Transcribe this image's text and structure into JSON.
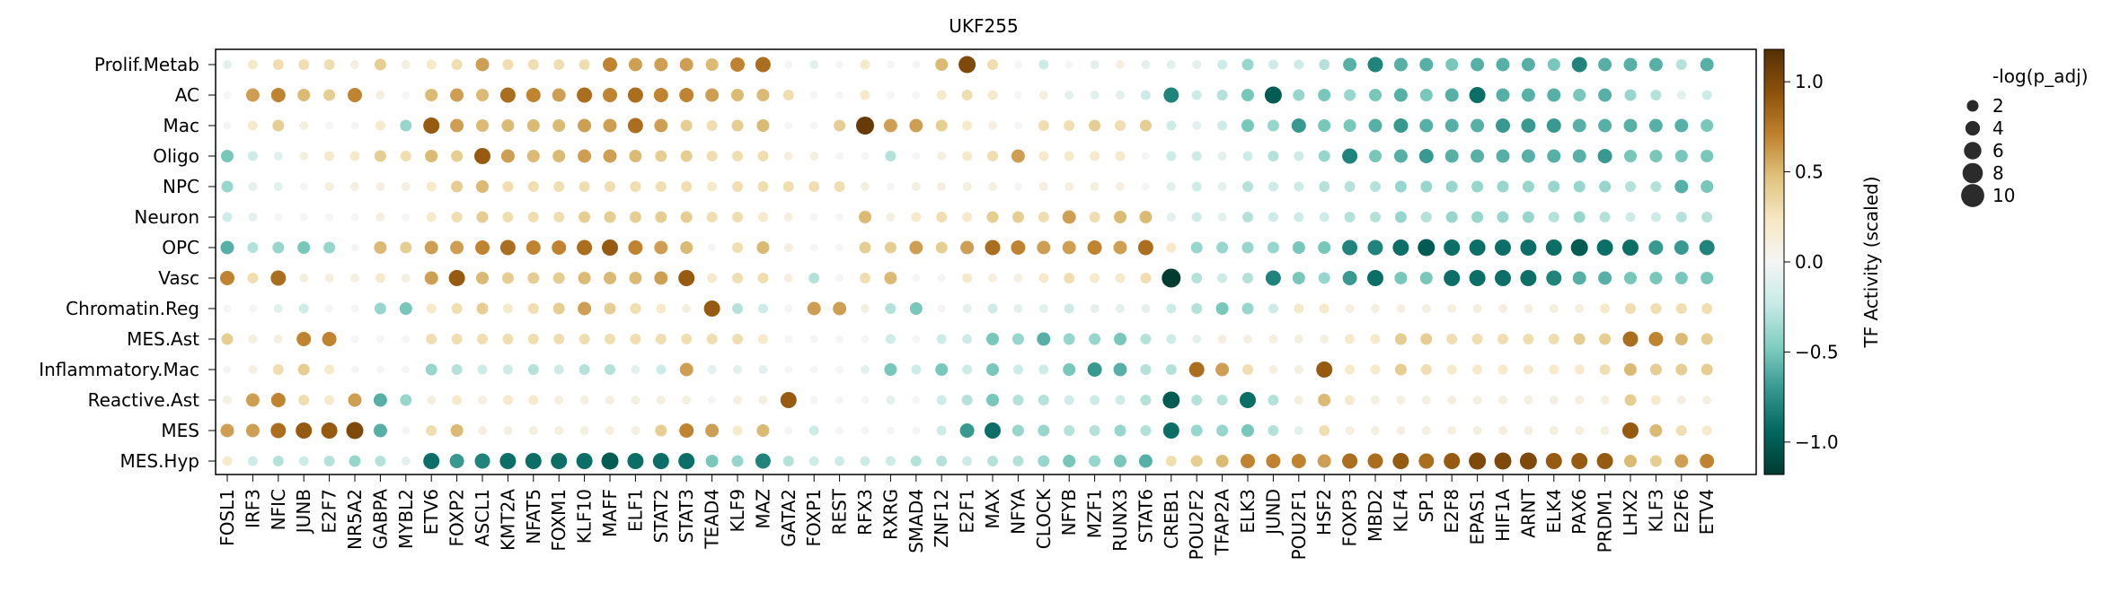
{
  "chart_data": {
    "type": "dotplot",
    "title": "UKF255",
    "rows": [
      "Prolif.Metab",
      "AC",
      "Mac",
      "Oligo",
      "NPC",
      "Neuron",
      "OPC",
      "Vasc",
      "Chromatin.Reg",
      "MES.Ast",
      "Inflammatory.Mac",
      "Reactive.Ast",
      "MES",
      "MES.Hyp"
    ],
    "columns": [
      "FOSL1",
      "IRF3",
      "NFIC",
      "JUNB",
      "E2F7",
      "NR5A2",
      "GABPA",
      "MYBL2",
      "ETV6",
      "FOXP2",
      "ASCL1",
      "KMT2A",
      "NFAT5",
      "FOXM1",
      "KLF10",
      "MAFF",
      "ELF1",
      "STAT2",
      "STAT3",
      "TEAD4",
      "KLF9",
      "MAZ",
      "GATA2",
      "FOXP1",
      "REST",
      "RFX3",
      "RXRG",
      "SMAD4",
      "ZNF12",
      "E2F1",
      "MAX",
      "NFYA",
      "CLOCK",
      "NFYB",
      "MZF1",
      "RUNX3",
      "STAT6",
      "CREB1",
      "POU2F2",
      "TFAP2A",
      "ELK3",
      "JUND",
      "POU2F1",
      "HSF2",
      "FOXP3",
      "MBD2",
      "KLF4",
      "SP1",
      "E2F8",
      "EPAS1",
      "HIF1A",
      "ARNT",
      "ELK4",
      "PAX6",
      "PRDM1",
      "LHX2",
      "KLF3",
      "E2F6",
      "ETV4"
    ],
    "activity": [
      [
        -0.1,
        0.2,
        0.3,
        0.3,
        0.3,
        0.1,
        0.4,
        0.1,
        0.2,
        0.3,
        0.6,
        0.3,
        0.3,
        0.3,
        0.3,
        0.7,
        0.6,
        0.6,
        0.6,
        0.5,
        0.7,
        0.8,
        0.0,
        -0.1,
        0.0,
        0.2,
        0.0,
        0.0,
        0.5,
        1.0,
        0.3,
        0.0,
        -0.2,
        0.0,
        -0.1,
        0.1,
        -0.1,
        -0.1,
        -0.1,
        -0.2,
        -0.4,
        -0.2,
        -0.2,
        -0.3,
        -0.6,
        -0.8,
        -0.6,
        -0.6,
        -0.5,
        -0.6,
        -0.6,
        -0.6,
        -0.5,
        -0.8,
        -0.6,
        -0.6,
        -0.6,
        -0.3,
        -0.6
      ],
      [
        0.0,
        0.6,
        0.7,
        0.5,
        0.4,
        0.7,
        0.1,
        0.0,
        0.5,
        0.6,
        0.5,
        0.8,
        0.7,
        0.6,
        0.8,
        0.7,
        0.8,
        0.7,
        0.7,
        0.6,
        0.5,
        0.5,
        0.3,
        0.0,
        0.0,
        0.2,
        0.0,
        0.0,
        0.2,
        0.3,
        0.2,
        0.0,
        0.1,
        -0.1,
        -0.1,
        -0.1,
        -0.2,
        -0.8,
        -0.2,
        -0.3,
        -0.5,
        -1.0,
        -0.4,
        -0.5,
        -0.4,
        -0.5,
        -0.6,
        -0.5,
        -0.6,
        -0.9,
        -0.6,
        -0.6,
        -0.6,
        -0.5,
        -0.6,
        -0.4,
        -0.3,
        -0.1,
        -0.2
      ],
      [
        0.0,
        0.2,
        0.4,
        0.1,
        0.0,
        0.0,
        0.2,
        -0.4,
        0.9,
        0.6,
        0.5,
        0.5,
        0.5,
        0.5,
        0.6,
        0.6,
        0.8,
        0.6,
        0.4,
        0.3,
        0.4,
        0.5,
        0.0,
        0.0,
        0.4,
        1.1,
        0.6,
        0.6,
        0.4,
        0.2,
        0.1,
        0.0,
        0.3,
        0.3,
        0.4,
        0.3,
        0.4,
        -0.2,
        -0.1,
        -0.2,
        -0.5,
        -0.4,
        -0.7,
        -0.5,
        -0.5,
        -0.6,
        -0.7,
        -0.6,
        -0.6,
        -0.6,
        -0.7,
        -0.7,
        -0.7,
        -0.6,
        -0.6,
        -0.6,
        -0.6,
        -0.6,
        -0.5
      ],
      [
        -0.5,
        -0.2,
        -0.1,
        0.1,
        0.2,
        0.2,
        0.4,
        0.3,
        0.5,
        0.4,
        0.9,
        0.6,
        0.5,
        0.5,
        0.6,
        0.6,
        0.5,
        0.4,
        0.4,
        0.3,
        0.3,
        0.3,
        0.1,
        0.1,
        0.0,
        0.0,
        -0.3,
        0.0,
        0.1,
        0.2,
        0.3,
        0.6,
        0.2,
        0.2,
        0.2,
        0.2,
        0.0,
        -0.2,
        -0.2,
        -0.1,
        -0.2,
        -0.3,
        -0.2,
        -0.4,
        -0.8,
        -0.5,
        -0.6,
        -0.7,
        -0.6,
        -0.6,
        -0.6,
        -0.6,
        -0.6,
        -0.6,
        -0.7,
        -0.5,
        -0.5,
        -0.5,
        -0.5
      ],
      [
        -0.4,
        -0.1,
        -0.1,
        0.0,
        0.1,
        0.1,
        0.1,
        0.1,
        0.2,
        0.4,
        0.5,
        0.3,
        0.3,
        0.3,
        0.3,
        0.3,
        0.3,
        0.3,
        0.3,
        0.2,
        0.3,
        0.3,
        0.3,
        0.3,
        0.3,
        0.1,
        0.0,
        0.1,
        0.1,
        0.1,
        0.1,
        0.0,
        0.1,
        0.1,
        0.1,
        0.1,
        0.0,
        -0.1,
        -0.2,
        -0.1,
        -0.3,
        -0.2,
        -0.2,
        -0.3,
        -0.3,
        -0.3,
        -0.4,
        -0.4,
        -0.4,
        -0.4,
        -0.4,
        -0.4,
        -0.4,
        -0.4,
        -0.4,
        -0.3,
        -0.3,
        -0.6,
        -0.5
      ],
      [
        -0.2,
        -0.1,
        0.0,
        0.0,
        0.0,
        0.0,
        0.1,
        0.0,
        0.2,
        0.3,
        0.4,
        0.3,
        0.3,
        0.3,
        0.4,
        0.4,
        0.4,
        0.4,
        0.4,
        0.3,
        0.3,
        0.2,
        0.1,
        0.0,
        0.0,
        0.5,
        0.1,
        0.2,
        0.3,
        0.2,
        0.4,
        0.4,
        0.3,
        0.6,
        0.3,
        0.5,
        0.5,
        -0.1,
        -0.2,
        -0.1,
        -0.3,
        -0.2,
        -0.2,
        -0.2,
        -0.3,
        -0.3,
        -0.4,
        -0.3,
        -0.4,
        -0.4,
        -0.4,
        -0.4,
        -0.3,
        -0.4,
        -0.3,
        -0.2,
        -0.2,
        -0.3,
        -0.3
      ],
      [
        -0.6,
        -0.3,
        -0.4,
        -0.5,
        -0.4,
        0.0,
        0.5,
        0.4,
        0.6,
        0.6,
        0.7,
        0.8,
        0.7,
        0.7,
        0.8,
        0.9,
        0.7,
        0.6,
        0.5,
        0.0,
        0.3,
        0.5,
        0.1,
        0.0,
        0.0,
        0.4,
        0.4,
        0.6,
        0.4,
        0.6,
        0.8,
        0.7,
        0.6,
        0.6,
        0.7,
        0.6,
        0.8,
        0.2,
        -0.4,
        -0.4,
        -0.4,
        -0.4,
        -0.5,
        -0.5,
        -0.8,
        -0.8,
        -0.9,
        -1.0,
        -0.9,
        -0.9,
        -0.9,
        -0.9,
        -0.9,
        -1.0,
        -0.9,
        -0.9,
        -0.7,
        -0.7,
        -0.8
      ],
      [
        0.7,
        0.3,
        0.8,
        0.1,
        0.1,
        0.1,
        0.2,
        0.1,
        0.6,
        0.9,
        0.5,
        0.4,
        0.4,
        0.4,
        0.5,
        0.5,
        0.5,
        0.6,
        0.9,
        0.2,
        0.3,
        0.3,
        0.1,
        -0.3,
        0.0,
        0.3,
        0.5,
        0.0,
        0.0,
        0.2,
        0.1,
        0.1,
        0.2,
        0.3,
        0.2,
        0.2,
        0.3,
        -1.2,
        -0.3,
        -0.2,
        -0.3,
        -0.8,
        -0.5,
        -0.4,
        -0.7,
        -0.9,
        -0.5,
        -0.5,
        -0.9,
        -0.9,
        -0.9,
        -0.9,
        -0.8,
        -0.6,
        -0.6,
        -0.5,
        -0.5,
        -0.5,
        -0.5
      ],
      [
        0.0,
        0.0,
        -0.1,
        -0.2,
        0.0,
        0.0,
        -0.4,
        -0.5,
        0.2,
        0.3,
        0.4,
        0.2,
        0.3,
        0.4,
        0.6,
        0.4,
        0.3,
        0.2,
        0.1,
        0.9,
        -0.3,
        -0.2,
        0.0,
        0.6,
        0.6,
        0.1,
        -0.3,
        -0.5,
        0.0,
        -0.1,
        -0.2,
        -0.1,
        -0.1,
        -0.2,
        -0.1,
        -0.1,
        -0.1,
        -0.2,
        -0.3,
        -0.5,
        -0.4,
        -0.2,
        0.2,
        0.2,
        0.1,
        0.1,
        0.1,
        0.1,
        0.1,
        0.1,
        0.1,
        0.1,
        0.1,
        0.1,
        0.2,
        0.3,
        0.3,
        0.3,
        0.3
      ],
      [
        0.4,
        0.1,
        0.1,
        0.7,
        0.7,
        0.0,
        0.0,
        0.0,
        0.3,
        0.3,
        0.3,
        0.3,
        0.3,
        0.3,
        0.3,
        0.3,
        0.3,
        0.3,
        0.3,
        0.3,
        0.3,
        0.2,
        0.0,
        0.0,
        0.0,
        0.0,
        -0.2,
        0.0,
        -0.2,
        -0.2,
        -0.5,
        -0.4,
        -0.6,
        -0.4,
        -0.4,
        -0.5,
        -0.3,
        -0.2,
        -0.1,
        0.1,
        0.1,
        0.1,
        0.1,
        0.1,
        0.2,
        0.2,
        0.4,
        0.4,
        0.3,
        0.3,
        0.3,
        0.3,
        0.3,
        0.4,
        0.4,
        0.8,
        0.7,
        0.5,
        0.4
      ],
      [
        0.0,
        0.1,
        0.3,
        0.4,
        0.2,
        0.0,
        0.0,
        0.0,
        -0.4,
        -0.3,
        -0.2,
        -0.2,
        -0.3,
        -0.2,
        -0.3,
        -0.3,
        -0.1,
        -0.2,
        0.6,
        -0.1,
        -0.1,
        -0.1,
        0.0,
        0.0,
        0.0,
        -0.1,
        -0.5,
        -0.2,
        -0.5,
        -0.2,
        -0.5,
        -0.2,
        -0.2,
        -0.5,
        -0.7,
        -0.6,
        -0.3,
        -0.3,
        0.8,
        0.6,
        0.3,
        0.1,
        0.1,
        0.9,
        0.2,
        0.2,
        0.4,
        0.3,
        0.2,
        0.2,
        0.2,
        0.2,
        0.2,
        0.2,
        0.3,
        0.5,
        0.4,
        0.4,
        0.4
      ],
      [
        0.1,
        0.6,
        0.7,
        0.3,
        0.2,
        0.6,
        -0.6,
        -0.4,
        0.1,
        0.2,
        0.1,
        0.2,
        0.2,
        0.1,
        0.1,
        0.1,
        0.1,
        0.1,
        0.1,
        0.0,
        0.1,
        0.1,
        0.9,
        0.0,
        0.0,
        0.0,
        -0.1,
        0.0,
        -0.2,
        -0.3,
        -0.5,
        -0.3,
        -0.3,
        -0.2,
        -0.2,
        -0.2,
        -0.3,
        -1.0,
        -0.3,
        -0.3,
        -0.9,
        -0.3,
        0.1,
        0.5,
        0.2,
        0.1,
        0.1,
        0.1,
        0.1,
        0.1,
        0.1,
        0.1,
        0.1,
        0.1,
        0.1,
        0.4,
        0.2,
        0.1,
        0.1
      ],
      [
        0.6,
        0.6,
        0.8,
        0.9,
        0.9,
        1.0,
        -0.6,
        0.0,
        0.3,
        0.5,
        0.1,
        0.1,
        0.1,
        0.1,
        0.1,
        0.1,
        0.1,
        0.4,
        0.7,
        0.6,
        0.2,
        0.5,
        0.0,
        -0.2,
        0.0,
        0.0,
        0.0,
        0.0,
        -0.2,
        -0.7,
        -0.9,
        -0.4,
        -0.4,
        -0.3,
        -0.3,
        -0.4,
        -0.3,
        -0.9,
        -0.4,
        -0.4,
        -0.5,
        -0.3,
        -0.1,
        0.3,
        0.1,
        0.1,
        0.1,
        0.1,
        0.1,
        0.1,
        0.1,
        0.1,
        0.1,
        0.1,
        0.1,
        0.9,
        0.5,
        0.3,
        0.2
      ],
      [
        0.2,
        -0.2,
        -0.3,
        -0.2,
        -0.3,
        -0.4,
        -0.3,
        -0.1,
        -0.9,
        -0.7,
        -0.8,
        -0.9,
        -0.9,
        -0.9,
        -0.9,
        -1.0,
        -0.9,
        -0.9,
        -0.9,
        -0.5,
        -0.4,
        -0.8,
        -0.3,
        -0.2,
        -0.2,
        -0.2,
        -0.2,
        -0.3,
        -0.3,
        -0.2,
        -0.3,
        -0.3,
        -0.4,
        -0.5,
        -0.4,
        -0.5,
        -0.6,
        0.3,
        0.4,
        0.5,
        0.7,
        0.7,
        0.7,
        0.6,
        0.8,
        0.8,
        0.9,
        0.8,
        0.9,
        1.0,
        1.0,
        1.0,
        0.9,
        0.9,
        0.9,
        0.5,
        0.4,
        0.6,
        0.7
      ]
    ],
    "colorbar": {
      "label": "TF Activity (scaled)",
      "ticks": [
        1.0,
        0.5,
        0.0,
        -0.5,
        -1.0
      ],
      "tick_labels": [
        "1.0",
        "0.5",
        "0.0",
        "−0.5",
        "−1.0"
      ],
      "range": [
        -1.18,
        1.18
      ],
      "colormap": "BrBG_r",
      "stops": [
        "#003c30",
        "#01665e",
        "#35978f",
        "#80cdc1",
        "#c7eae5",
        "#f5f5f5",
        "#f6e8c3",
        "#dfc27d",
        "#bf812d",
        "#8c510a",
        "#543005"
      ]
    },
    "size_legend": {
      "title": "-log(p_adj)",
      "values": [
        2,
        4,
        6,
        8,
        10
      ],
      "labels": [
        "2",
        "4",
        "6",
        "8",
        "10"
      ]
    },
    "grid": false
  }
}
